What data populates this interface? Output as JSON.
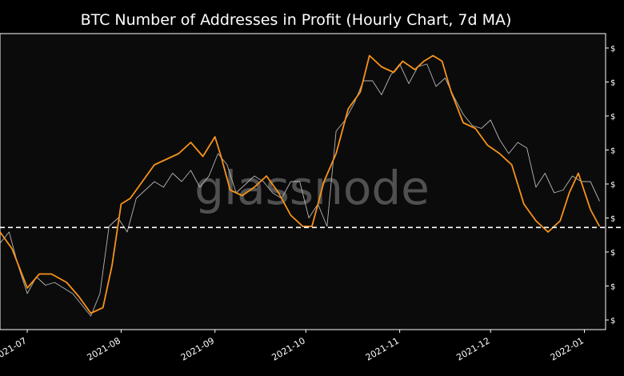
{
  "chart_data": {
    "type": "line",
    "title": "BTC Number of Addresses in Profit (Hourly Chart, 7d MA)",
    "xlabel": "",
    "ylabel": "",
    "x_ticks": [
      "2021-07",
      "2021-08",
      "2021-09",
      "2021-10",
      "2021-11",
      "2021-12",
      "2022-01"
    ],
    "y_tick_labels": [
      "$",
      "$",
      "$",
      "$",
      "$",
      "$",
      "$",
      "$",
      "$"
    ],
    "watermark": "glassnode",
    "grid": false,
    "reference_line": {
      "style": "dashed",
      "color": "#ffffff",
      "y_fraction": 0.345
    },
    "colors": {
      "background": "#0b0b0b",
      "hourly": "#b5b5b5",
      "ma": "#f7931a",
      "axis": "#ffffff"
    },
    "series": [
      {
        "style": "hourly",
        "x": [
          "2021-06-22",
          "2021-06-25",
          "2021-06-28",
          "2021-07-01",
          "2021-07-04",
          "2021-07-07",
          "2021-07-10",
          "2021-07-13",
          "2021-07-16",
          "2021-07-19",
          "2021-07-22",
          "2021-07-25",
          "2021-07-28",
          "2021-07-31",
          "2021-08-03",
          "2021-08-06",
          "2021-08-09",
          "2021-08-12",
          "2021-08-15",
          "2021-08-18",
          "2021-08-21",
          "2021-08-24",
          "2021-08-27",
          "2021-08-30",
          "2021-09-02",
          "2021-09-05",
          "2021-09-08",
          "2021-09-11",
          "2021-09-14",
          "2021-09-17",
          "2021-09-20",
          "2021-09-23",
          "2021-09-26",
          "2021-09-29",
          "2021-10-02",
          "2021-10-05",
          "2021-10-08",
          "2021-10-11",
          "2021-10-14",
          "2021-10-17",
          "2021-10-20",
          "2021-10-23",
          "2021-10-26",
          "2021-10-29",
          "2021-11-01",
          "2021-11-04",
          "2021-11-07",
          "2021-11-10",
          "2021-11-13",
          "2021-11-16",
          "2021-11-19",
          "2021-11-22",
          "2021-11-25",
          "2021-11-28",
          "2021-12-01",
          "2021-12-04",
          "2021-12-07",
          "2021-12-10",
          "2021-12-13",
          "2021-12-16",
          "2021-12-19",
          "2021-12-22",
          "2021-12-25",
          "2021-12-28",
          "2021-12-31",
          "2022-01-03",
          "2022-01-06"
        ],
        "values": [
          0.28,
          0.32,
          0.2,
          0.1,
          0.16,
          0.13,
          0.14,
          0.12,
          0.1,
          0.06,
          0.02,
          0.1,
          0.34,
          0.37,
          0.32,
          0.44,
          0.47,
          0.5,
          0.48,
          0.53,
          0.5,
          0.54,
          0.48,
          0.52,
          0.6,
          0.56,
          0.46,
          0.49,
          0.52,
          0.5,
          0.46,
          0.44,
          0.5,
          0.5,
          0.37,
          0.42,
          0.34,
          0.68,
          0.72,
          0.78,
          0.86,
          0.86,
          0.81,
          0.88,
          0.92,
          0.85,
          0.91,
          0.92,
          0.84,
          0.87,
          0.8,
          0.74,
          0.7,
          0.69,
          0.72,
          0.65,
          0.6,
          0.64,
          0.62,
          0.48,
          0.53,
          0.46,
          0.47,
          0.52,
          0.5,
          0.5,
          0.43
        ]
      },
      {
        "style": "ma",
        "x": [
          "2021-06-22",
          "2021-06-26",
          "2021-07-01",
          "2021-07-05",
          "2021-07-09",
          "2021-07-14",
          "2021-07-18",
          "2021-07-22",
          "2021-07-26",
          "2021-07-29",
          "2021-08-01",
          "2021-08-04",
          "2021-08-08",
          "2021-08-12",
          "2021-08-16",
          "2021-08-20",
          "2021-08-24",
          "2021-08-28",
          "2021-09-01",
          "2021-09-03",
          "2021-09-06",
          "2021-09-10",
          "2021-09-14",
          "2021-09-18",
          "2021-09-22",
          "2021-09-26",
          "2021-09-30",
          "2021-10-03",
          "2021-10-07",
          "2021-10-11",
          "2021-10-15",
          "2021-10-19",
          "2021-10-22",
          "2021-10-26",
          "2021-10-30",
          "2021-11-02",
          "2021-11-06",
          "2021-11-09",
          "2021-11-12",
          "2021-11-15",
          "2021-11-18",
          "2021-11-22",
          "2021-11-26",
          "2021-11-30",
          "2021-12-04",
          "2021-12-08",
          "2021-12-12",
          "2021-12-16",
          "2021-12-20",
          "2021-12-24",
          "2021-12-27",
          "2021-12-30",
          "2022-01-03",
          "2022-01-06"
        ],
        "values": [
          0.32,
          0.26,
          0.12,
          0.17,
          0.17,
          0.14,
          0.09,
          0.03,
          0.05,
          0.2,
          0.42,
          0.44,
          0.5,
          0.56,
          0.58,
          0.6,
          0.64,
          0.59,
          0.66,
          0.59,
          0.47,
          0.45,
          0.48,
          0.52,
          0.46,
          0.38,
          0.34,
          0.34,
          0.5,
          0.6,
          0.76,
          0.82,
          0.95,
          0.91,
          0.89,
          0.93,
          0.9,
          0.93,
          0.95,
          0.93,
          0.82,
          0.71,
          0.69,
          0.63,
          0.6,
          0.56,
          0.42,
          0.36,
          0.32,
          0.36,
          0.46,
          0.53,
          0.4,
          0.34
        ]
      }
    ]
  }
}
